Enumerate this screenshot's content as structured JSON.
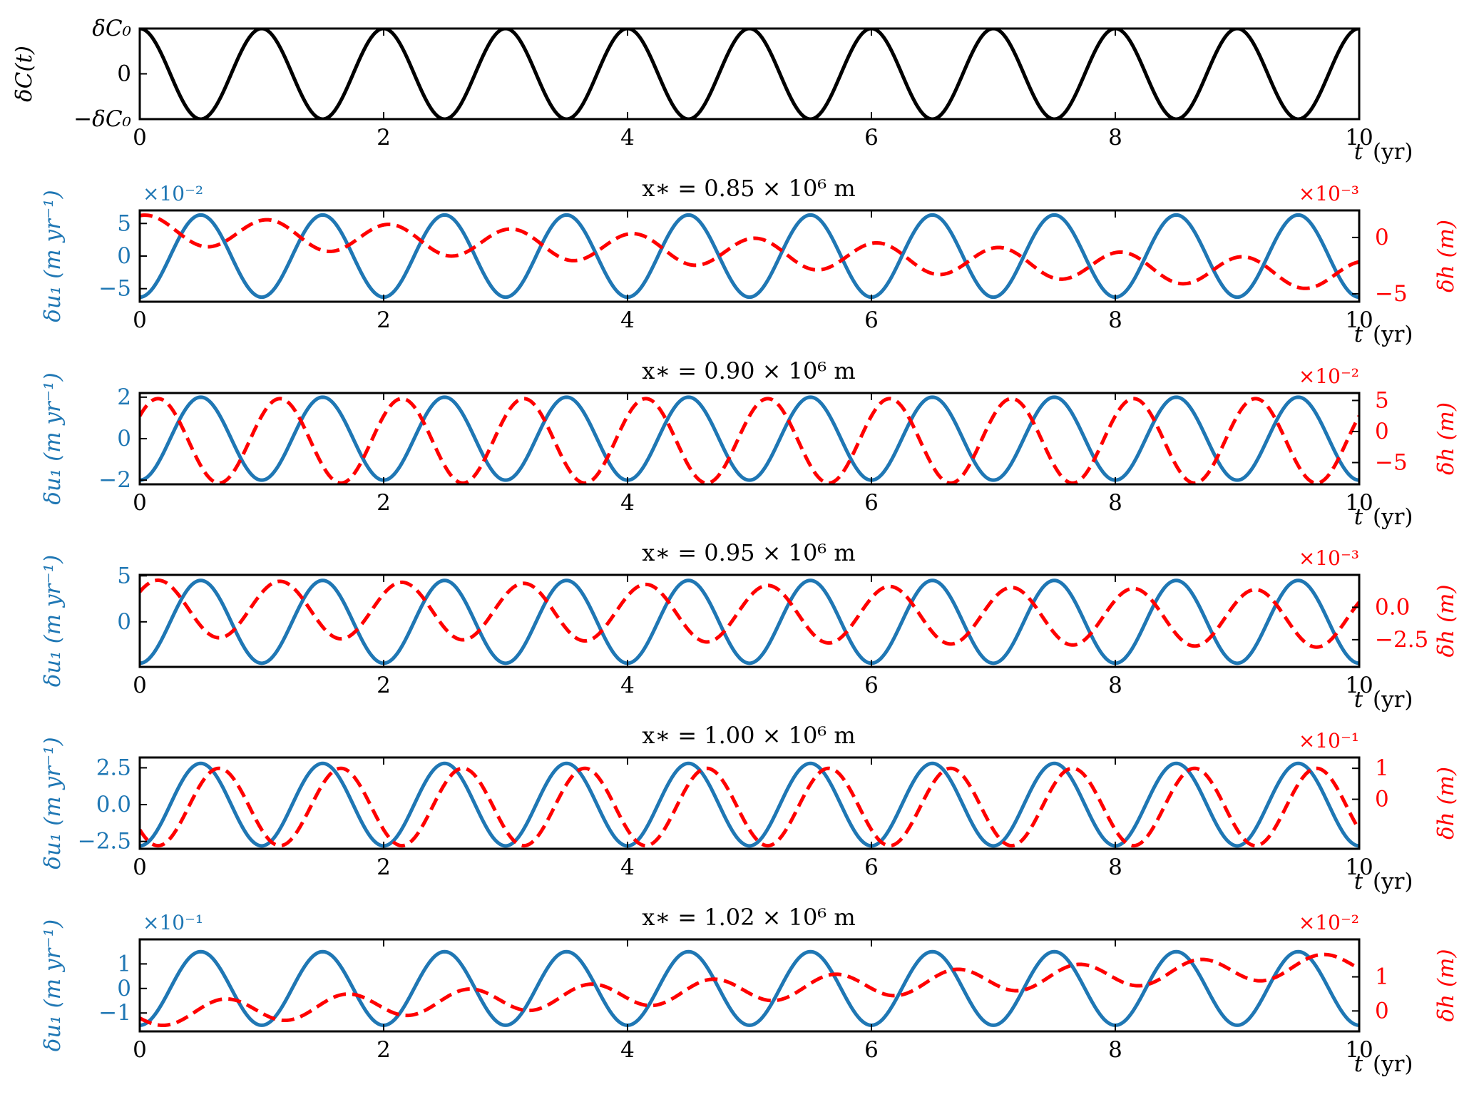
{
  "colors": {
    "black": "#000000",
    "blue": "#1f77b4",
    "red": "#ff0000"
  },
  "chart_data": [
    {
      "type": "line",
      "title": "",
      "xlabel": "t (yr)",
      "ylabel": "δC(t)",
      "xlim": [
        0,
        10
      ],
      "x_ticks": [
        "0",
        "2",
        "4",
        "6",
        "8",
        "10"
      ],
      "y_ticks": [
        {
          "value": 1,
          "label": "δC₀"
        },
        {
          "value": 0,
          "label": "0"
        },
        {
          "value": -1,
          "label": "−δC₀"
        }
      ],
      "ylim": [
        -1,
        1
      ],
      "series": [
        {
          "amplitude": 1,
          "period_yr": 1,
          "phase": 0,
          "style": "solid",
          "color": "black"
        }
      ],
      "sampled_values": {
        "x": [
          0,
          0.25,
          0.5,
          0.75,
          1,
          1.5,
          2,
          2.5,
          3,
          10
        ],
        "y": [
          1,
          0,
          -1,
          0,
          1,
          -1,
          1,
          -1,
          1,
          1
        ]
      }
    },
    {
      "type": "line",
      "title": "x∗ = 0.85 × 10⁶ m",
      "xlabel": "t (yr)",
      "ylabel": "δu₁ (m yr⁻¹)",
      "ylabel_right": "δh (m)",
      "left_multiplier": "×10⁻²",
      "right_multiplier": "×10⁻³",
      "xlim": [
        0,
        10
      ],
      "x_ticks": [
        "0",
        "2",
        "4",
        "6",
        "8",
        "10"
      ],
      "ylim_left": [
        -7,
        7
      ],
      "y_ticks_left": [
        {
          "value": 5,
          "label": "5"
        },
        {
          "value": 0,
          "label": "0"
        },
        {
          "value": -5,
          "label": "−5"
        }
      ],
      "ylim_right": [
        -5.7,
        2.4
      ],
      "y_ticks_right": [
        {
          "value": 0,
          "label": "0"
        },
        {
          "value": -5,
          "label": "−5"
        }
      ],
      "series": [
        {
          "side": "left",
          "style": "solid",
          "color": "blue",
          "amplitude": 6.3,
          "period_yr": 1,
          "phase": 0.5,
          "trend": 0,
          "start": -6.3
        },
        {
          "side": "right",
          "style": "dashed",
          "color": "red",
          "amplitude": 1.3,
          "period_yr": 1,
          "phase": 0.05,
          "offset_start": 0.7,
          "offset_end": -3.4
        }
      ]
    },
    {
      "type": "line",
      "title": "x∗ = 0.90 × 10⁶ m",
      "xlabel": "t (yr)",
      "ylabel": "δu₁ (m yr⁻¹)",
      "ylabel_right": "δh (m)",
      "left_multiplier": "",
      "right_multiplier": "×10⁻²",
      "xlim": [
        0,
        10
      ],
      "x_ticks": [
        "0",
        "2",
        "4",
        "6",
        "8",
        "10"
      ],
      "ylim_left": [
        -2.2,
        2.2
      ],
      "y_ticks_left": [
        {
          "value": 2,
          "label": "2"
        },
        {
          "value": 0,
          "label": "0"
        },
        {
          "value": -2,
          "label": "−2"
        }
      ],
      "ylim_right": [
        -8.5,
        6.2
      ],
      "y_ticks_right": [
        {
          "value": 5,
          "label": "5"
        },
        {
          "value": 0,
          "label": "0"
        },
        {
          "value": -5,
          "label": "−5"
        }
      ],
      "series": [
        {
          "side": "left",
          "style": "solid",
          "color": "blue",
          "amplitude": 2.0,
          "period_yr": 1,
          "phase": 0.5,
          "trend": 0,
          "start": -2.0
        },
        {
          "side": "right",
          "style": "dashed",
          "color": "red",
          "amplitude": 6.8,
          "period_yr": 1,
          "phase": 0.15,
          "offset_start": -1.5,
          "offset_end": -1.5
        }
      ]
    },
    {
      "type": "line",
      "title": "x∗ = 0.95 × 10⁶ m",
      "xlabel": "t (yr)",
      "ylabel": "δu₁ (m yr⁻¹)",
      "ylabel_right": "δh (m)",
      "left_multiplier": "",
      "right_multiplier": "×10⁻³",
      "xlim": [
        0,
        10
      ],
      "x_ticks": [
        "0",
        "2",
        "4",
        "6",
        "8",
        "10"
      ],
      "ylim_left": [
        -4.9,
        5.1
      ],
      "y_ticks_left": [
        {
          "value": 5,
          "label": "5"
        },
        {
          "value": 0,
          "label": "0"
        }
      ],
      "ylim_right": [
        -4.6,
        2.5
      ],
      "y_ticks_right": [
        {
          "value": 0,
          "label": "0.0"
        },
        {
          "value": -2.5,
          "label": "−2.5"
        }
      ],
      "series": [
        {
          "side": "left",
          "style": "solid",
          "color": "blue",
          "amplitude": 4.5,
          "period_yr": 1,
          "phase": 0.5,
          "trend": 0,
          "start": -4.5
        },
        {
          "side": "right",
          "style": "dashed",
          "color": "red",
          "amplitude": 2.2,
          "period_yr": 1,
          "phase": 0.15,
          "offset_start": -0.1,
          "offset_end": -0.9
        }
      ]
    },
    {
      "type": "line",
      "title": "x∗ = 1.00 × 10⁶ m",
      "xlabel": "t (yr)",
      "ylabel": "δu₁ (m yr⁻¹)",
      "ylabel_right": "δh (m)",
      "left_multiplier": "",
      "right_multiplier": "×10⁻¹",
      "xlim": [
        0,
        10
      ],
      "x_ticks": [
        "0",
        "2",
        "4",
        "6",
        "8",
        "10"
      ],
      "ylim_left": [
        -3.0,
        3.2
      ],
      "y_ticks_left": [
        {
          "value": 2.5,
          "label": "2.5"
        },
        {
          "value": 0,
          "label": "0.0"
        },
        {
          "value": -2.5,
          "label": "−2.5"
        }
      ],
      "ylim_right": [
        -1.6,
        1.35
      ],
      "y_ticks_right": [
        {
          "value": 1,
          "label": "1"
        },
        {
          "value": 0,
          "label": "0"
        }
      ],
      "series": [
        {
          "side": "left",
          "style": "solid",
          "color": "blue",
          "amplitude": 2.8,
          "period_yr": 1,
          "phase": 0.5,
          "trend": 0,
          "start": -2.8
        },
        {
          "side": "right",
          "style": "dashed",
          "color": "red",
          "amplitude": 1.25,
          "period_yr": 1,
          "phase": 0.65,
          "offset_start": -0.25,
          "offset_end": -0.25
        }
      ]
    },
    {
      "type": "line",
      "title": "x∗ = 1.02 × 10⁶ m",
      "xlabel": "t (yr)",
      "ylabel": "δu₁ (m yr⁻¹)",
      "ylabel_right": "δh (m)",
      "left_multiplier": "×10⁻¹",
      "right_multiplier": "×10⁻²",
      "xlim": [
        0,
        10
      ],
      "x_ticks": [
        "0",
        "2",
        "4",
        "6",
        "8",
        "10"
      ],
      "ylim_left": [
        -1.75,
        2.0
      ],
      "y_ticks_left": [
        {
          "value": 1,
          "label": "1"
        },
        {
          "value": 0,
          "label": "0"
        },
        {
          "value": -1,
          "label": "−1"
        }
      ],
      "ylim_right": [
        -0.6,
        2.1
      ],
      "y_ticks_right": [
        {
          "value": 1,
          "label": "1"
        },
        {
          "value": 0,
          "label": "0"
        }
      ],
      "series": [
        {
          "side": "left",
          "style": "solid",
          "color": "blue",
          "amplitude": 1.5,
          "period_yr": 1,
          "phase": 0.5,
          "trend": 0,
          "start": -1.5
        },
        {
          "side": "right",
          "style": "dashed",
          "color": "red",
          "amplitude": 0.35,
          "period_yr": 1,
          "phase": 0.7,
          "offset_start": -0.1,
          "offset_end": 1.35
        }
      ]
    }
  ]
}
